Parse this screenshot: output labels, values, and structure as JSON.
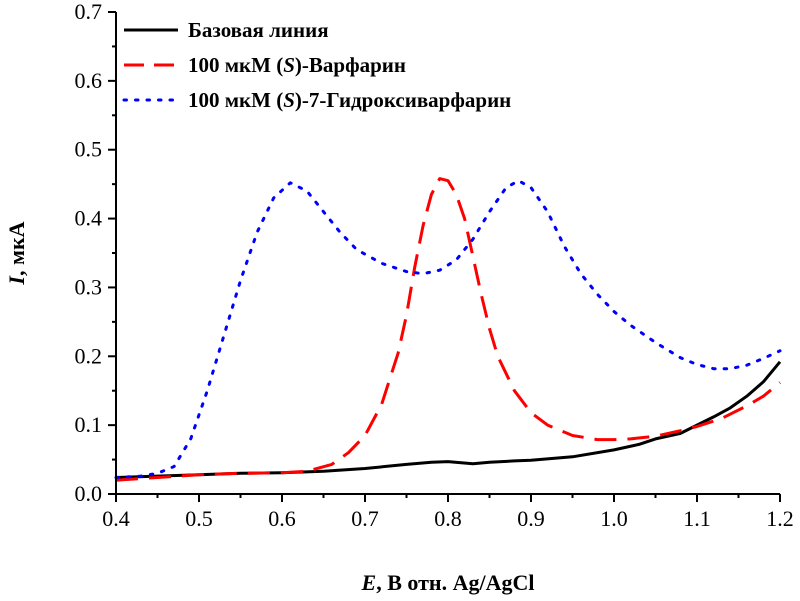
{
  "chart_data": {
    "type": "line",
    "xlabel": {
      "symbol": "E",
      "rest": ", В отн. Ag/AgCl"
    },
    "ylabel": {
      "symbol": "I",
      "rest": ", мкА"
    },
    "xlim": [
      0.4,
      1.2
    ],
    "ylim": [
      0.0,
      0.7
    ],
    "xticks": [
      "0.4",
      "0.5",
      "0.6",
      "0.7",
      "0.8",
      "0.9",
      "1.0",
      "1.1",
      "1.2"
    ],
    "yticks": [
      "0.0",
      "0.1",
      "0.2",
      "0.3",
      "0.4",
      "0.5",
      "0.6",
      "0.7"
    ],
    "grid": false,
    "legend_position": "top-left",
    "series": [
      {
        "name": "Базовая линия",
        "legend_parts": [
          {
            "text": "Базовая линия",
            "italic": false
          }
        ],
        "style": "solid",
        "color": "#000000",
        "points": [
          [
            0.4,
            0.024
          ],
          [
            0.45,
            0.026
          ],
          [
            0.5,
            0.028
          ],
          [
            0.55,
            0.03
          ],
          [
            0.6,
            0.031
          ],
          [
            0.65,
            0.033
          ],
          [
            0.7,
            0.037
          ],
          [
            0.75,
            0.043
          ],
          [
            0.78,
            0.046
          ],
          [
            0.8,
            0.047
          ],
          [
            0.83,
            0.044
          ],
          [
            0.85,
            0.046
          ],
          [
            0.88,
            0.048
          ],
          [
            0.9,
            0.049
          ],
          [
            0.95,
            0.054
          ],
          [
            1.0,
            0.064
          ],
          [
            1.03,
            0.072
          ],
          [
            1.05,
            0.08
          ],
          [
            1.08,
            0.088
          ],
          [
            1.1,
            0.1
          ],
          [
            1.12,
            0.112
          ],
          [
            1.14,
            0.125
          ],
          [
            1.16,
            0.142
          ],
          [
            1.18,
            0.163
          ],
          [
            1.2,
            0.192
          ]
        ]
      },
      {
        "name": "100 мкМ (S)-Варфарин",
        "legend_parts": [
          {
            "text": "100 мкМ (",
            "italic": false
          },
          {
            "text": "S",
            "italic": true
          },
          {
            "text": ")-Варфарин",
            "italic": false
          }
        ],
        "style": "dashed",
        "color": "#ff0000",
        "points": [
          [
            0.4,
            0.02
          ],
          [
            0.45,
            0.024
          ],
          [
            0.5,
            0.028
          ],
          [
            0.55,
            0.03
          ],
          [
            0.6,
            0.031
          ],
          [
            0.63,
            0.033
          ],
          [
            0.66,
            0.043
          ],
          [
            0.68,
            0.06
          ],
          [
            0.7,
            0.085
          ],
          [
            0.72,
            0.13
          ],
          [
            0.74,
            0.205
          ],
          [
            0.75,
            0.26
          ],
          [
            0.76,
            0.33
          ],
          [
            0.77,
            0.39
          ],
          [
            0.78,
            0.435
          ],
          [
            0.79,
            0.458
          ],
          [
            0.8,
            0.455
          ],
          [
            0.81,
            0.435
          ],
          [
            0.82,
            0.4
          ],
          [
            0.83,
            0.345
          ],
          [
            0.84,
            0.29
          ],
          [
            0.85,
            0.24
          ],
          [
            0.86,
            0.2
          ],
          [
            0.88,
            0.15
          ],
          [
            0.9,
            0.118
          ],
          [
            0.92,
            0.1
          ],
          [
            0.95,
            0.085
          ],
          [
            0.98,
            0.079
          ],
          [
            1.0,
            0.079
          ],
          [
            1.02,
            0.08
          ],
          [
            1.05,
            0.084
          ],
          [
            1.08,
            0.092
          ],
          [
            1.1,
            0.098
          ],
          [
            1.13,
            0.11
          ],
          [
            1.16,
            0.128
          ],
          [
            1.18,
            0.142
          ],
          [
            1.2,
            0.162
          ]
        ]
      },
      {
        "name": "100 мкМ (S)-7-Гидроксиварфарин",
        "legend_parts": [
          {
            "text": "100 мкМ (",
            "italic": false
          },
          {
            "text": "S",
            "italic": true
          },
          {
            "text": ")-7-Гидроксиварфарин",
            "italic": false
          }
        ],
        "style": "dotted",
        "color": "#0000ff",
        "points": [
          [
            0.4,
            0.024
          ],
          [
            0.43,
            0.026
          ],
          [
            0.45,
            0.03
          ],
          [
            0.47,
            0.04
          ],
          [
            0.49,
            0.08
          ],
          [
            0.51,
            0.15
          ],
          [
            0.53,
            0.23
          ],
          [
            0.55,
            0.31
          ],
          [
            0.57,
            0.38
          ],
          [
            0.59,
            0.43
          ],
          [
            0.61,
            0.452
          ],
          [
            0.63,
            0.44
          ],
          [
            0.65,
            0.41
          ],
          [
            0.67,
            0.38
          ],
          [
            0.69,
            0.355
          ],
          [
            0.72,
            0.335
          ],
          [
            0.75,
            0.323
          ],
          [
            0.77,
            0.32
          ],
          [
            0.79,
            0.325
          ],
          [
            0.81,
            0.34
          ],
          [
            0.83,
            0.37
          ],
          [
            0.85,
            0.41
          ],
          [
            0.87,
            0.445
          ],
          [
            0.885,
            0.455
          ],
          [
            0.9,
            0.445
          ],
          [
            0.92,
            0.41
          ],
          [
            0.94,
            0.36
          ],
          [
            0.96,
            0.32
          ],
          [
            0.98,
            0.29
          ],
          [
            1.0,
            0.265
          ],
          [
            1.02,
            0.245
          ],
          [
            1.05,
            0.22
          ],
          [
            1.08,
            0.198
          ],
          [
            1.1,
            0.188
          ],
          [
            1.12,
            0.182
          ],
          [
            1.14,
            0.182
          ],
          [
            1.16,
            0.187
          ],
          [
            1.18,
            0.197
          ],
          [
            1.2,
            0.208
          ]
        ]
      }
    ]
  }
}
